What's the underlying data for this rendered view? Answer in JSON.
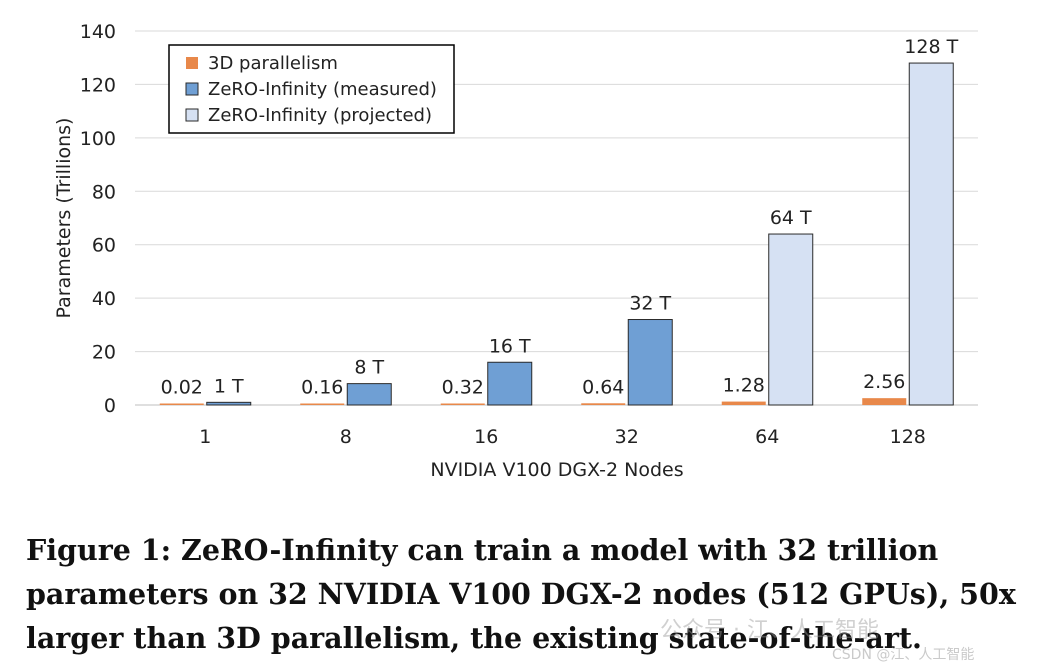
{
  "chart_data": {
    "type": "bar",
    "title": "",
    "xlabel": "NVIDIA V100 DGX-2 Nodes",
    "ylabel": "Parameters (Trillions)",
    "ylim": [
      0,
      140
    ],
    "yticks": [
      "0",
      "20",
      "40",
      "60",
      "80",
      "100",
      "120",
      "140"
    ],
    "grid": true,
    "legend_position": "top-left",
    "categories": [
      "1",
      "8",
      "16",
      "32",
      "64",
      "128"
    ],
    "series": [
      {
        "name": "3D parallelism",
        "color": "#E8884A",
        "values": [
          0.02,
          0.16,
          0.32,
          0.64,
          1.28,
          2.56
        ],
        "labels": [
          "0.02",
          "0.16",
          "0.32",
          "0.64",
          "1.28",
          "2.56"
        ]
      },
      {
        "name": "ZeRO-Infinity (measured)",
        "color": "#6F9FD4",
        "values": [
          1,
          8,
          16,
          32,
          null,
          null
        ],
        "labels": [
          "1 T",
          "8 T",
          "16 T",
          "32 T",
          "",
          ""
        ]
      },
      {
        "name": "ZeRO-Infinity (projected)",
        "color": "#D6E1F3",
        "values": [
          null,
          null,
          null,
          null,
          64,
          128
        ],
        "labels": [
          "",
          "",
          "",
          "",
          "64 T",
          "128 T"
        ]
      }
    ]
  },
  "caption": "Figure 1: ZeRO-Infinity can train a model with 32 trillion parameters on 32 NVIDIA V100 DGX-2 nodes (512 GPUs), 50x larger than 3D parallelism, the existing state-of-the-art.",
  "watermark": {
    "main": "公众号 · 江、人工智能",
    "sub": "CSDN @江、人工智能"
  }
}
